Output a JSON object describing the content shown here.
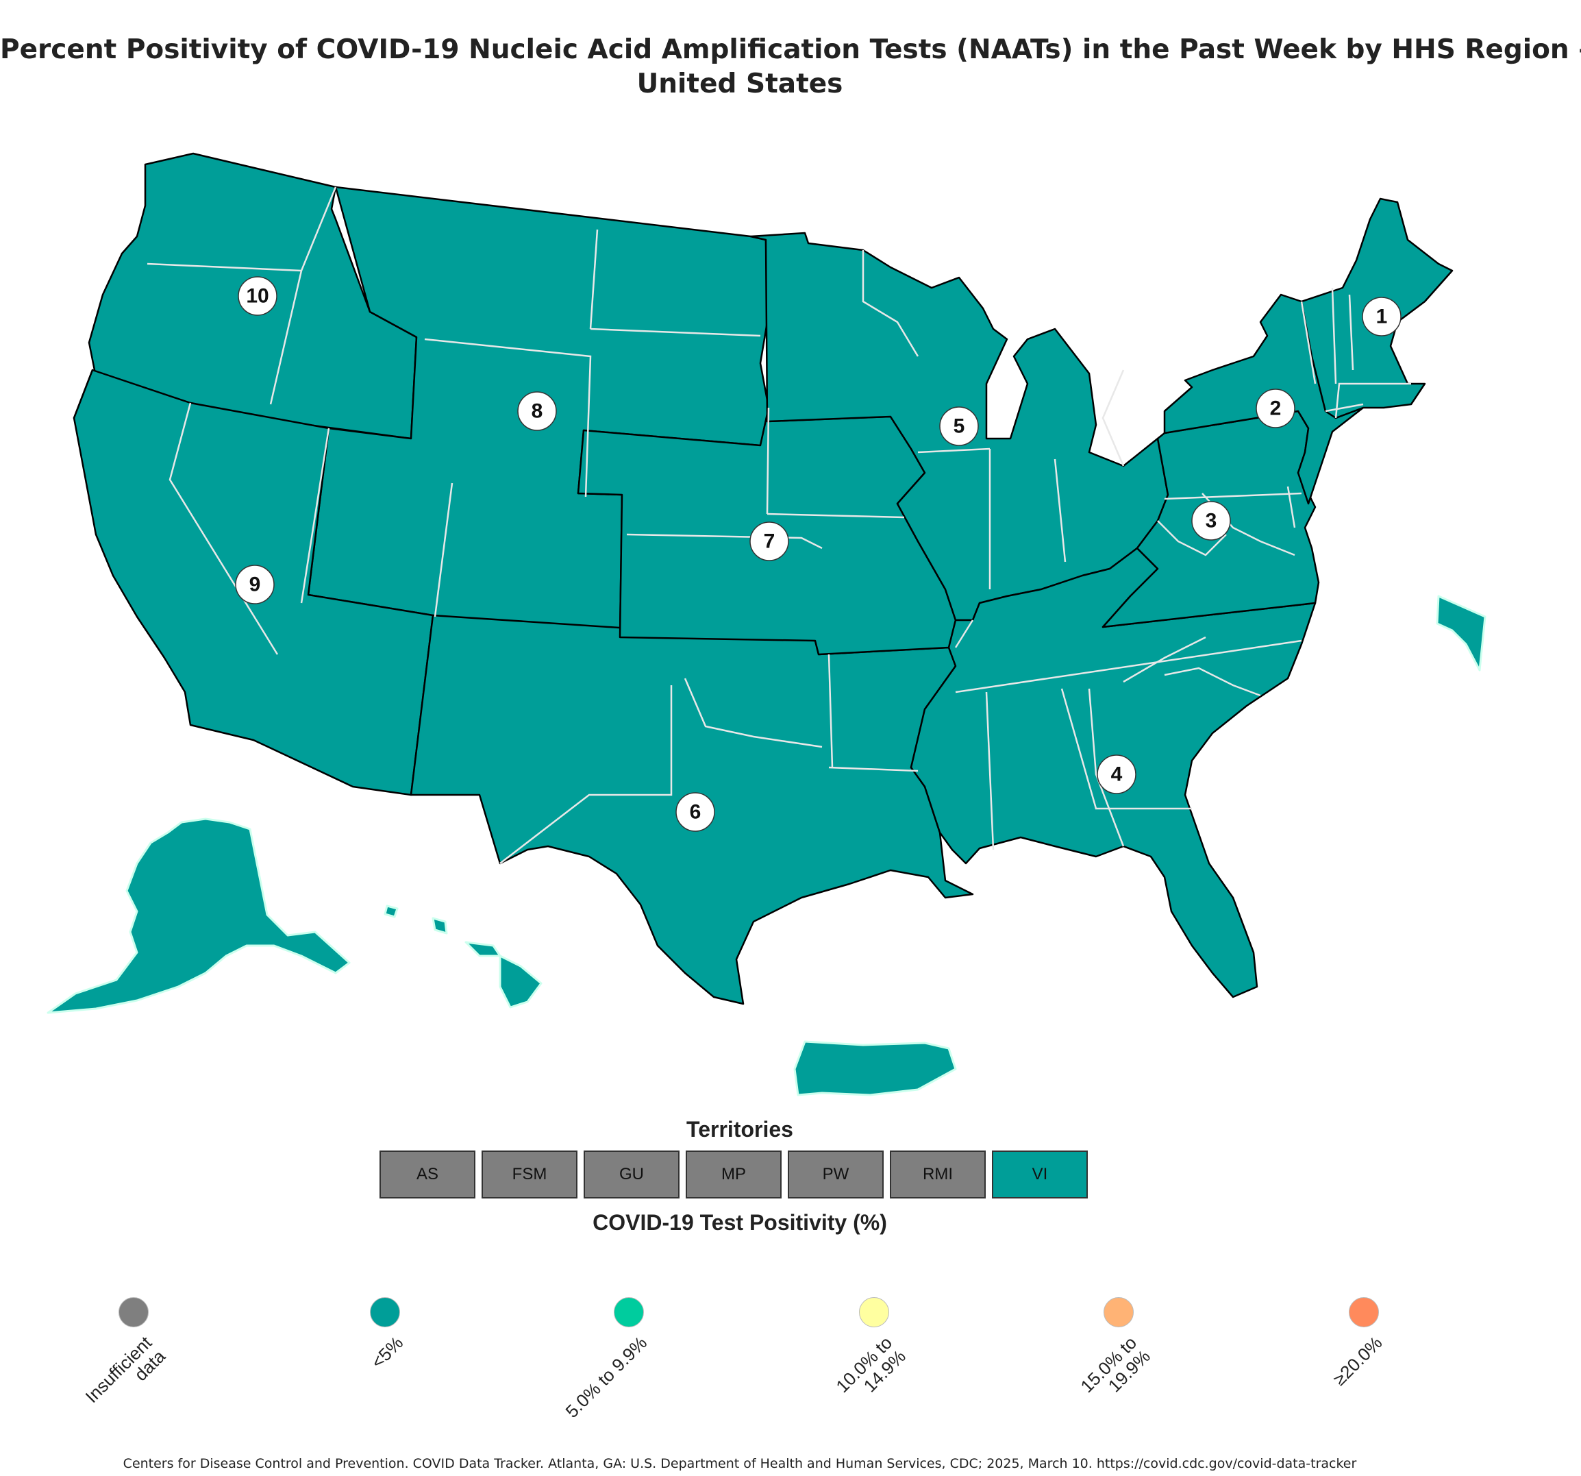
{
  "title_line1": "Percent Positivity of COVID-19 Nucleic Acid Amplification Tests (NAATs) in the Past Week by HHS Region –",
  "title_line2": "United States",
  "colors": {
    "insufficient": "#7f7f7f",
    "lt5": "#009e98",
    "p5to9": "#00cc9e",
    "p10to14": "#ffffa0",
    "p15to19": "#ffb375",
    "ge20": "#ff8a5c",
    "region_border": "#000000",
    "state_border": "#e6e6e6"
  },
  "regions": [
    {
      "label": "1",
      "category": "<5%"
    },
    {
      "label": "2",
      "category": "<5%"
    },
    {
      "label": "3",
      "category": "<5%"
    },
    {
      "label": "4",
      "category": "<5%"
    },
    {
      "label": "5",
      "category": "<5%"
    },
    {
      "label": "6",
      "category": "<5%"
    },
    {
      "label": "7",
      "category": "<5%"
    },
    {
      "label": "8",
      "category": "<5%"
    },
    {
      "label": "9",
      "category": "<5%"
    },
    {
      "label": "10",
      "category": "<5%"
    }
  ],
  "territories_title": "Territories",
  "territories": [
    {
      "label": "AS",
      "status": "Insufficient data"
    },
    {
      "label": "FSM",
      "status": "Insufficient data"
    },
    {
      "label": "GU",
      "status": "Insufficient data"
    },
    {
      "label": "MP",
      "status": "Insufficient data"
    },
    {
      "label": "PW",
      "status": "Insufficient data"
    },
    {
      "label": "RMI",
      "status": "Insufficient data"
    },
    {
      "label": "VI",
      "status": "<5%"
    }
  ],
  "legend_title": "COVID-19 Test Positivity (%)",
  "legend": [
    {
      "label": "Insufficient\ndata",
      "color": "#7f7f7f"
    },
    {
      "label": "<5%",
      "color": "#009e98"
    },
    {
      "label": "5.0% to 9.9%",
      "color": "#00cc9e"
    },
    {
      "label": "10.0% to\n14.9%",
      "color": "#ffffa0"
    },
    {
      "label": "15.0% to\n19.9%",
      "color": "#ffb375"
    },
    {
      "label": "≥20.0%",
      "color": "#ff8a5c"
    }
  ],
  "source": "Centers for Disease Control and Prevention. COVID Data Tracker. Atlanta, GA: U.S. Department of Health and Human Services, CDC; 2025, March 10. https://covid.cdc.gov/covid-data-tracker"
}
